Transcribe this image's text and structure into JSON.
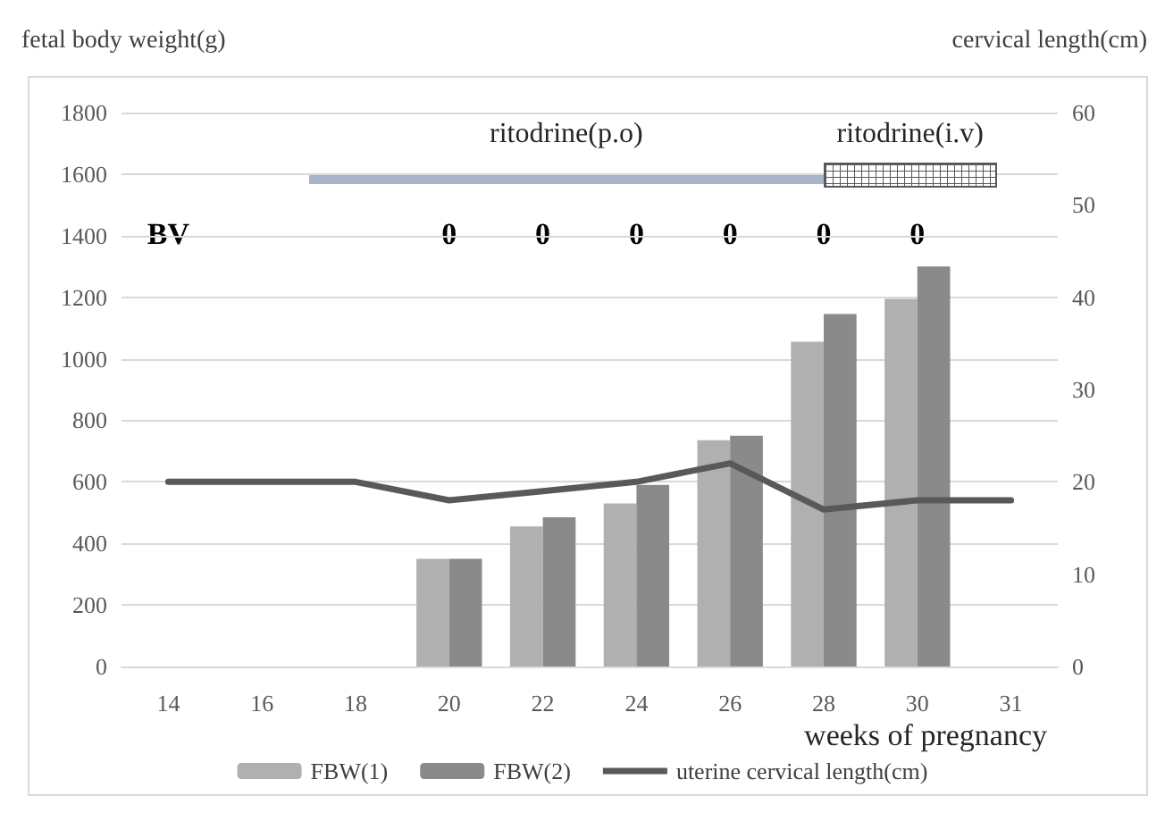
{
  "chart_data": {
    "type": "bar",
    "categories": [
      "14",
      "16",
      "18",
      "20",
      "22",
      "24",
      "26",
      "28",
      "30",
      "31"
    ],
    "series": [
      {
        "name": "FBW(1)",
        "color": "#b0b0b0",
        "values": [
          null,
          null,
          null,
          350,
          455,
          530,
          735,
          1055,
          1195,
          null
        ]
      },
      {
        "name": "FBW(2)",
        "color": "#8a8a8a",
        "values": [
          null,
          null,
          null,
          350,
          485,
          590,
          750,
          1145,
          1300,
          null
        ]
      },
      {
        "name": "uterine cervical length(cm)",
        "type": "line",
        "axis": "y2",
        "color": "#595959",
        "values": [
          20,
          20,
          20,
          18,
          19,
          20,
          22,
          17,
          18,
          18
        ]
      }
    ],
    "xlabel": "weeks of pregnancy",
    "ylabel": "fetal body weight(g)",
    "y2label": "cervical length(cm)",
    "ylim": [
      0,
      1800
    ],
    "yticks": [
      0,
      200,
      400,
      600,
      800,
      1000,
      1200,
      1400,
      1600,
      1800
    ],
    "y2lim": [
      0,
      60
    ],
    "y2ticks": [
      0,
      10,
      20,
      30,
      40,
      50,
      60
    ],
    "annotations": [
      "ritodrine(p.o)",
      "ritodrine(i.v)",
      "BV",
      "0",
      "0",
      "0",
      "0",
      "0",
      "0"
    ],
    "grid": "y",
    "legend": "bottom",
    "marker": "none",
    "line_style": "solid"
  }
}
